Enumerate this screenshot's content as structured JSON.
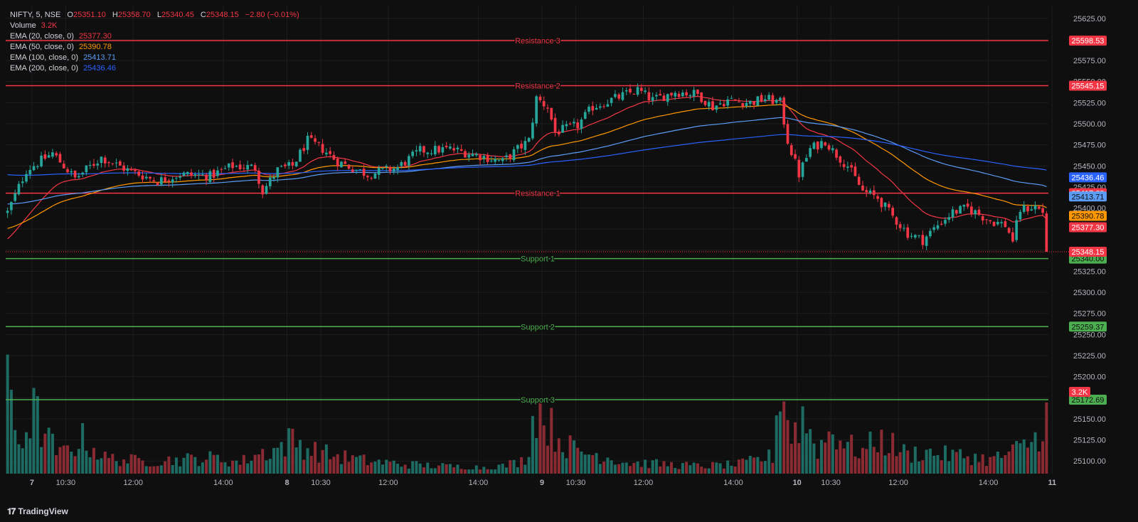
{
  "header": {
    "symbol": "NIFTY, 5, NSE",
    "open_label": "O",
    "open": "25351.10",
    "high_label": "H",
    "high": "25358.70",
    "low_label": "L",
    "low": "25340.45",
    "close_label": "C",
    "close": "25348.15",
    "change": "−2.80 (−0.01%)",
    "volume_label": "Volume",
    "volume": "3.2K"
  },
  "indicators": [
    {
      "label": "EMA (20, close, 0)",
      "value": "25377.30",
      "color": "#f23645"
    },
    {
      "label": "EMA (50, close, 0)",
      "value": "25390.78",
      "color": "#ff9800"
    },
    {
      "label": "EMA (100, close, 0)",
      "value": "25413.71",
      "color": "#5b9cf6"
    },
    {
      "label": "EMA (200, close, 0)",
      "value": "25436.46",
      "color": "#2962ff"
    }
  ],
  "branding": "TradingView",
  "colors": {
    "up": "#26a69a",
    "down": "#f23645",
    "bg": "#0f0f0f",
    "grid": "#1e1e1e",
    "support": "#4caf50",
    "resistance": "#f23645",
    "last": "#f23645"
  },
  "chart_data": {
    "type": "candlestick",
    "y_ticks": [
      25100,
      25125,
      25150,
      25175,
      25200,
      25225,
      25250,
      25275,
      25300,
      25325,
      25350,
      25375,
      25400,
      25425,
      25450,
      25475,
      25500,
      25525,
      25550,
      25575,
      25600,
      25625
    ],
    "y_tick_labels": [
      "25100.00",
      "25125.00",
      "25150.00",
      "25175.00",
      "25200.00",
      "25225.00",
      "25250.00",
      "25275.00",
      "25300.00",
      "25325.00",
      "25350.00",
      "25375.00",
      "25400.00",
      "25425.00",
      "25450.00",
      "25475.00",
      "25500.00",
      "25525.00",
      "25550.00",
      "25575.00",
      "25600.00",
      "25625.00"
    ],
    "ylim": [
      25085,
      25640
    ],
    "x_ticks": [
      {
        "label": "7",
        "bold": true,
        "bar": 7
      },
      {
        "label": "10:30",
        "bold": false,
        "bar": 16
      },
      {
        "label": "12:00",
        "bold": false,
        "bar": 34
      },
      {
        "label": "14:00",
        "bold": false,
        "bar": 58
      },
      {
        "label": "8",
        "bold": true,
        "bar": 75
      },
      {
        "label": "10:30",
        "bold": false,
        "bar": 84
      },
      {
        "label": "12:00",
        "bold": false,
        "bar": 102
      },
      {
        "label": "14:00",
        "bold": false,
        "bar": 126
      },
      {
        "label": "9",
        "bold": true,
        "bar": 143
      },
      {
        "label": "10:30",
        "bold": false,
        "bar": 152
      },
      {
        "label": "12:00",
        "bold": false,
        "bar": 170
      },
      {
        "label": "14:00",
        "bold": false,
        "bar": 194
      },
      {
        "label": "10",
        "bold": true,
        "bar": 211
      },
      {
        "label": "10:30",
        "bold": false,
        "bar": 220
      },
      {
        "label": "12:00",
        "bold": false,
        "bar": 238
      },
      {
        "label": "14:00",
        "bold": false,
        "bar": 262
      },
      {
        "label": "11",
        "bold": true,
        "bar": 279
      }
    ],
    "bar_count": 278,
    "levels": [
      {
        "name": "Resistance 3",
        "value": 25598.53,
        "label": "25598.53",
        "kind": "resistance"
      },
      {
        "name": "Resistance 2",
        "value": 25545.15,
        "label": "25545.15",
        "kind": "resistance"
      },
      {
        "name": "Resistance 1",
        "value": 25417.68,
        "label": "25417.68",
        "kind": "resistance"
      },
      {
        "name": "Support 1",
        "value": 25340.0,
        "label": "25340.00",
        "kind": "support"
      },
      {
        "name": "Support 2",
        "value": 25259.37,
        "label": "25259.37",
        "kind": "support"
      },
      {
        "name": "Support 3",
        "value": 25172.69,
        "label": "25172.69",
        "kind": "support"
      }
    ],
    "last_price": {
      "value": 25348.15,
      "label": "25348.15"
    },
    "ema_badges": [
      {
        "value": 25436.46,
        "label": "25436.46",
        "color": "#2962ff"
      },
      {
        "value": 25413.71,
        "label": "25413.71",
        "color": "#5b9cf6"
      },
      {
        "value": 25390.78,
        "label": "25390.78",
        "color": "#ff9800"
      },
      {
        "value": 25377.3,
        "label": "25377.30",
        "color": "#f23645"
      }
    ],
    "volume_badge": {
      "label": "3.2K"
    },
    "close_anchors": [
      [
        0,
        25395
      ],
      [
        5,
        25445
      ],
      [
        12,
        25465
      ],
      [
        18,
        25435
      ],
      [
        25,
        25460
      ],
      [
        32,
        25445
      ],
      [
        40,
        25432
      ],
      [
        46,
        25440
      ],
      [
        54,
        25438
      ],
      [
        60,
        25450
      ],
      [
        66,
        25448
      ],
      [
        68,
        25420
      ],
      [
        72,
        25445
      ],
      [
        76,
        25450
      ],
      [
        80,
        25480
      ],
      [
        84,
        25470
      ],
      [
        88,
        25455
      ],
      [
        96,
        25440
      ],
      [
        104,
        25448
      ],
      [
        110,
        25468
      ],
      [
        118,
        25470
      ],
      [
        126,
        25462
      ],
      [
        132,
        25455
      ],
      [
        136,
        25470
      ],
      [
        139,
        25480
      ],
      [
        141,
        25530
      ],
      [
        144,
        25520
      ],
      [
        146,
        25490
      ],
      [
        152,
        25498
      ],
      [
        156,
        25520
      ],
      [
        162,
        25530
      ],
      [
        168,
        25540
      ],
      [
        172,
        25528
      ],
      [
        178,
        25538
      ],
      [
        184,
        25535
      ],
      [
        188,
        25520
      ],
      [
        192,
        25528
      ],
      [
        198,
        25525
      ],
      [
        202,
        25530
      ],
      [
        206,
        25525
      ],
      [
        208,
        25480
      ],
      [
        211,
        25440
      ],
      [
        214,
        25470
      ],
      [
        218,
        25480
      ],
      [
        220,
        25468
      ],
      [
        224,
        25450
      ],
      [
        228,
        25420
      ],
      [
        232,
        25412
      ],
      [
        236,
        25390
      ],
      [
        240,
        25370
      ],
      [
        244,
        25362
      ],
      [
        248,
        25380
      ],
      [
        252,
        25395
      ],
      [
        256,
        25400
      ],
      [
        262,
        25385
      ],
      [
        266,
        25380
      ],
      [
        268,
        25362
      ],
      [
        270,
        25398
      ],
      [
        274,
        25402
      ],
      [
        276,
        25395
      ],
      [
        278,
        25348
      ]
    ],
    "volume_anchors": [
      [
        0,
        130
      ],
      [
        3,
        50
      ],
      [
        5,
        70
      ],
      [
        7,
        100
      ],
      [
        10,
        60
      ],
      [
        14,
        30
      ],
      [
        20,
        55
      ],
      [
        26,
        25
      ],
      [
        35,
        20
      ],
      [
        45,
        22
      ],
      [
        55,
        25
      ],
      [
        62,
        18
      ],
      [
        66,
        30
      ],
      [
        72,
        40
      ],
      [
        76,
        55
      ],
      [
        80,
        40
      ],
      [
        86,
        30
      ],
      [
        96,
        20
      ],
      [
        106,
        15
      ],
      [
        116,
        12
      ],
      [
        126,
        10
      ],
      [
        132,
        12
      ],
      [
        138,
        22
      ],
      [
        141,
        110
      ],
      [
        144,
        80
      ],
      [
        148,
        50
      ],
      [
        152,
        35
      ],
      [
        158,
        30
      ],
      [
        165,
        18
      ],
      [
        175,
        15
      ],
      [
        185,
        12
      ],
      [
        195,
        15
      ],
      [
        200,
        22
      ],
      [
        204,
        28
      ],
      [
        206,
        150
      ],
      [
        209,
        60
      ],
      [
        212,
        90
      ],
      [
        216,
        40
      ],
      [
        220,
        70
      ],
      [
        224,
        45
      ],
      [
        228,
        35
      ],
      [
        232,
        55
      ],
      [
        236,
        45
      ],
      [
        240,
        30
      ],
      [
        244,
        35
      ],
      [
        250,
        30
      ],
      [
        256,
        28
      ],
      [
        262,
        22
      ],
      [
        266,
        30
      ],
      [
        270,
        40
      ],
      [
        274,
        55
      ],
      [
        278,
        108
      ]
    ]
  }
}
